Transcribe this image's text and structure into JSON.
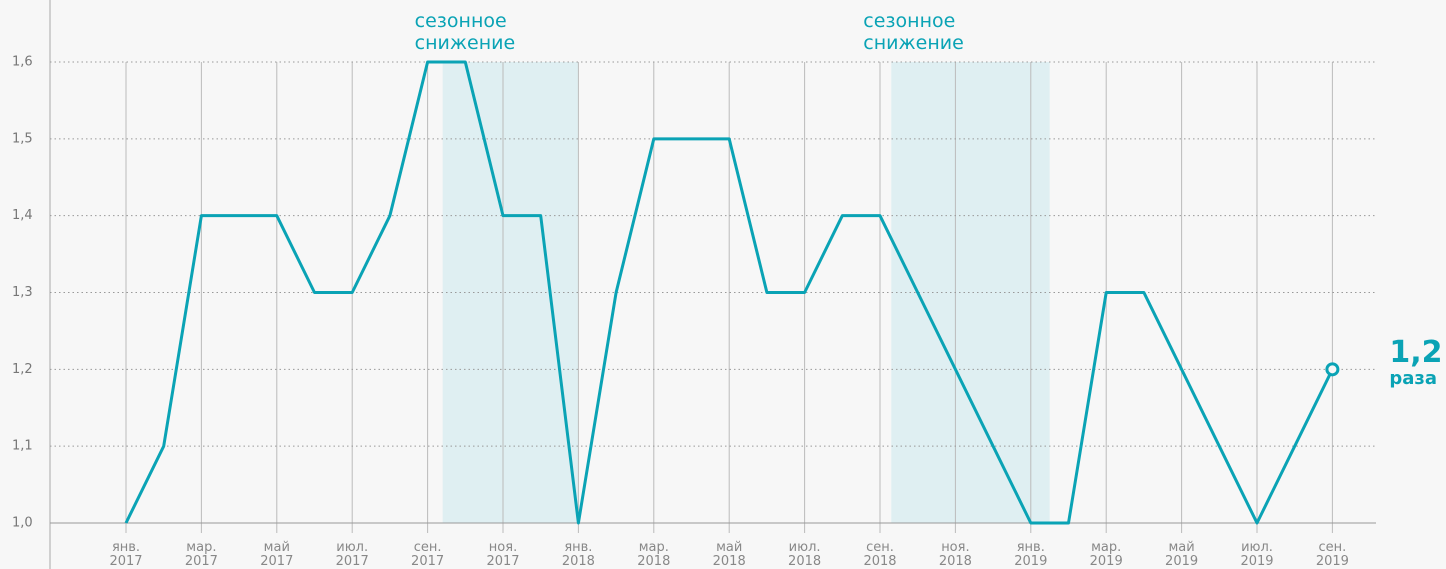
{
  "chart_data": {
    "type": "line",
    "categories": [
      "янв. 2017",
      null,
      "мар. 2017",
      null,
      "май 2017",
      null,
      "июл. 2017",
      null,
      "сен. 2017",
      null,
      "ноя. 2017",
      null,
      "янв. 2018",
      null,
      "мар. 2018",
      null,
      "май 2018",
      null,
      "июл. 2018",
      null,
      "сен. 2018",
      null,
      "ноя. 2018",
      null,
      "янв. 2019",
      null,
      "мар. 2019",
      null,
      "май 2019",
      null,
      "июл. 2019",
      null,
      "сен. 2019"
    ],
    "series": [
      {
        "color": "#0aa3b5",
        "values": [
          1.0,
          1.1,
          1.4,
          1.4,
          1.4,
          1.3,
          1.3,
          1.4,
          1.6,
          1.6,
          1.4,
          1.4,
          1.0,
          1.3,
          1.5,
          1.5,
          1.5,
          1.3,
          1.3,
          1.4,
          1.4,
          1.3,
          1.2,
          1.1,
          1.0,
          1.0,
          1.3,
          1.3,
          1.2,
          1.1,
          1.0,
          1.1,
          1.2
        ]
      }
    ],
    "ylim": [
      1.0,
      1.6
    ],
    "yticks": [
      {
        "value": 1.0,
        "label": "1,0"
      },
      {
        "value": 1.1,
        "label": "1,1"
      },
      {
        "value": 1.2,
        "label": "1,2"
      },
      {
        "value": 1.3,
        "label": "1,3"
      },
      {
        "value": 1.4,
        "label": "1,4"
      },
      {
        "value": 1.5,
        "label": "1,5"
      },
      {
        "value": 1.6,
        "label": "1,6"
      }
    ],
    "grid": true,
    "shaded_periods": [
      {
        "label": "сезонное снижение",
        "start": 8.4,
        "end": 12.0,
        "color": "#dfeff2"
      },
      {
        "label": "сезонное снижение",
        "start": 20.3,
        "end": 24.5,
        "color": "#dfeff2"
      }
    ],
    "end_label": "1,2",
    "end_unit": "раза"
  }
}
